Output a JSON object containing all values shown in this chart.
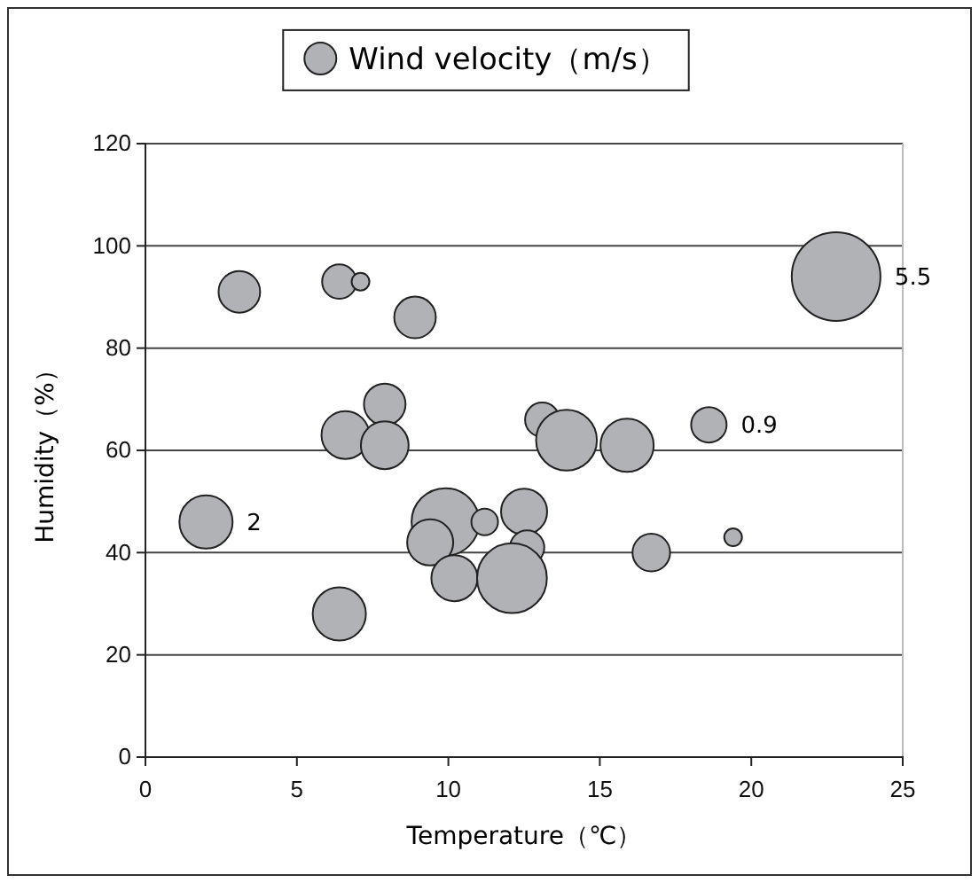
{
  "chart_data": {
    "type": "bubble",
    "xlabel": "Temperature（℃）",
    "ylabel": "Humidity（%）",
    "series": [
      {
        "name": "Wind velocity（m/s）",
        "color": "#b1b2b5",
        "x": [
          3.1,
          6.4,
          7.1,
          8.9,
          7.9,
          6.6,
          7.9,
          2,
          9.9,
          11.2,
          12.5,
          9.4,
          12.6,
          10.2,
          12.1,
          6.4,
          13.1,
          13.9,
          15.9,
          18.6,
          16.7,
          19.4,
          22.8
        ],
        "values": [
          91,
          93,
          93,
          86,
          69,
          63,
          61,
          46,
          46,
          46,
          48,
          42,
          41,
          35,
          35,
          28,
          66,
          62,
          61,
          65,
          40,
          43,
          94
        ],
        "sizes": [
          0.22,
          0.15,
          0.04,
          0.22,
          0.22,
          0.29,
          0.29,
          0.36,
          0.58,
          0.09,
          0.27,
          0.27,
          0.15,
          0.27,
          0.62,
          0.36,
          0.15,
          0.47,
          0.36,
          0.16,
          0.18,
          0.04,
          1
        ]
      }
    ],
    "annotations": [
      {
        "text": "2",
        "x": 2,
        "y": 46
      },
      {
        "text": "0.9",
        "x": 18.6,
        "y": 65
      },
      {
        "text": "5.5",
        "x": 22.8,
        "y": 94
      }
    ],
    "xlim": [
      0,
      25
    ],
    "xticks": [
      0,
      5,
      10,
      15,
      20,
      25
    ],
    "ylim": [
      0,
      120
    ],
    "yticks": [
      0,
      20,
      40,
      60,
      80,
      100,
      120
    ],
    "grid": "y",
    "legend": "top"
  }
}
